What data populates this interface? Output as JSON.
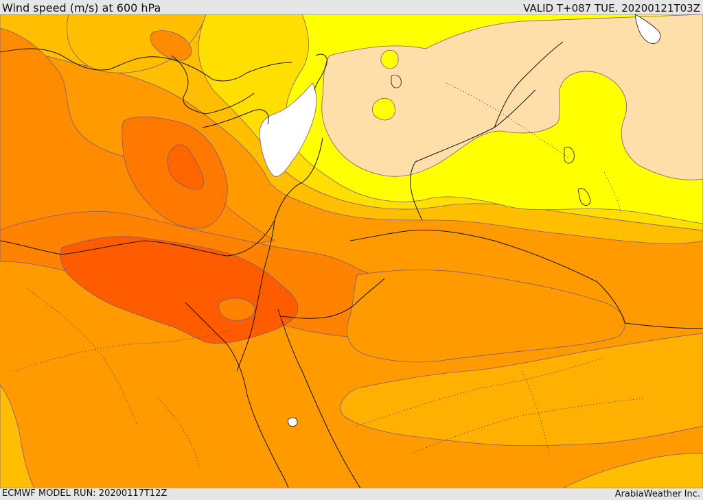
{
  "header": {
    "title": "Wind speed (m/s) at 600 hPa",
    "valid_time": "VALID T+087 TUE. 20200121T03Z"
  },
  "footer": {
    "model_run": "ECMWF MODEL RUN: 20200117T12Z",
    "credit": "ArabiaWeather Inc."
  },
  "map": {
    "variable": "wind-speed",
    "level_hpa": 600,
    "colors": {
      "calm": "#ffffff",
      "light": "#ffdfa9",
      "yellow": "#ffff00",
      "gold": "#ffdf00",
      "amber": "#ffbf00",
      "orange_light": "#ffa000",
      "orange": "#ff8c00",
      "orange_dark": "#ff7000",
      "red_orange": "#ff5a00"
    }
  }
}
